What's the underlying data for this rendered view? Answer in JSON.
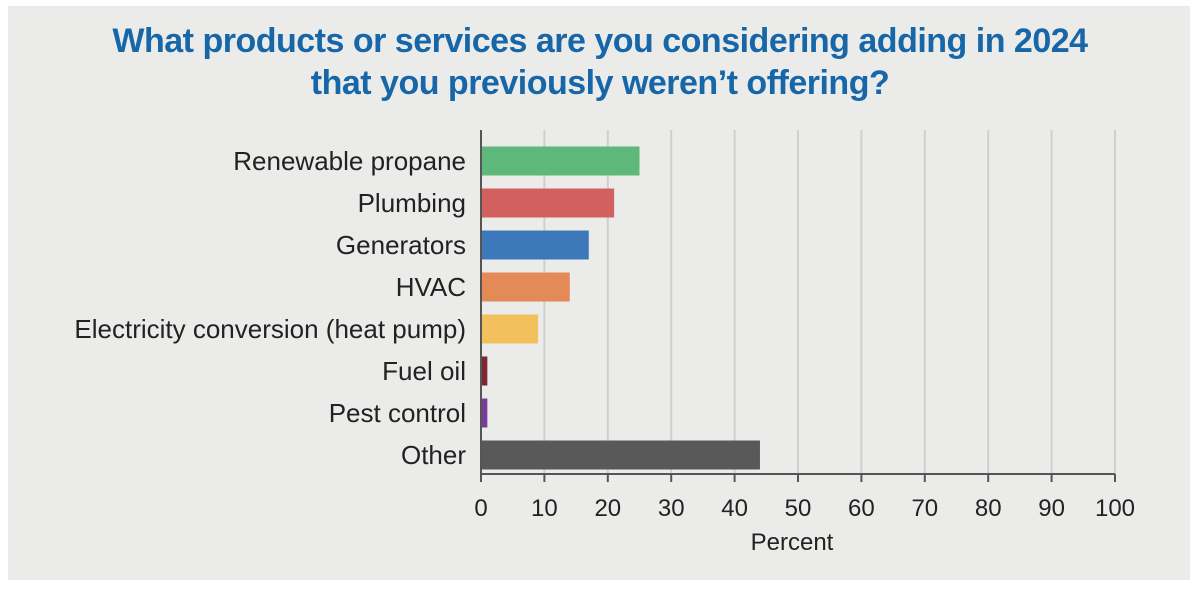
{
  "chart_data": {
    "type": "bar",
    "orientation": "horizontal",
    "title_lines": [
      "What products or services are you considering adding in 2024",
      "that you previously weren’t offering?"
    ],
    "xlabel": "Percent",
    "ylabel": "",
    "xlim": [
      0,
      100
    ],
    "x_ticks": [
      "0",
      "10",
      "20",
      "30",
      "40",
      "50",
      "60",
      "70",
      "80",
      "90",
      "100"
    ],
    "grid": "vertical",
    "categories": [
      "Renewable propane",
      "Plumbing",
      "Generators",
      "HVAC",
      "Electricity conversion (heat pump)",
      "Fuel oil",
      "Pest control",
      "Other"
    ],
    "values": [
      25,
      21,
      17,
      14,
      9,
      1,
      1,
      44
    ],
    "colors": [
      "#5db87a",
      "#d2605e",
      "#3d78ba",
      "#e38a56",
      "#f3c05e",
      "#7d2530",
      "#7a3c9b",
      "#595959"
    ]
  }
}
